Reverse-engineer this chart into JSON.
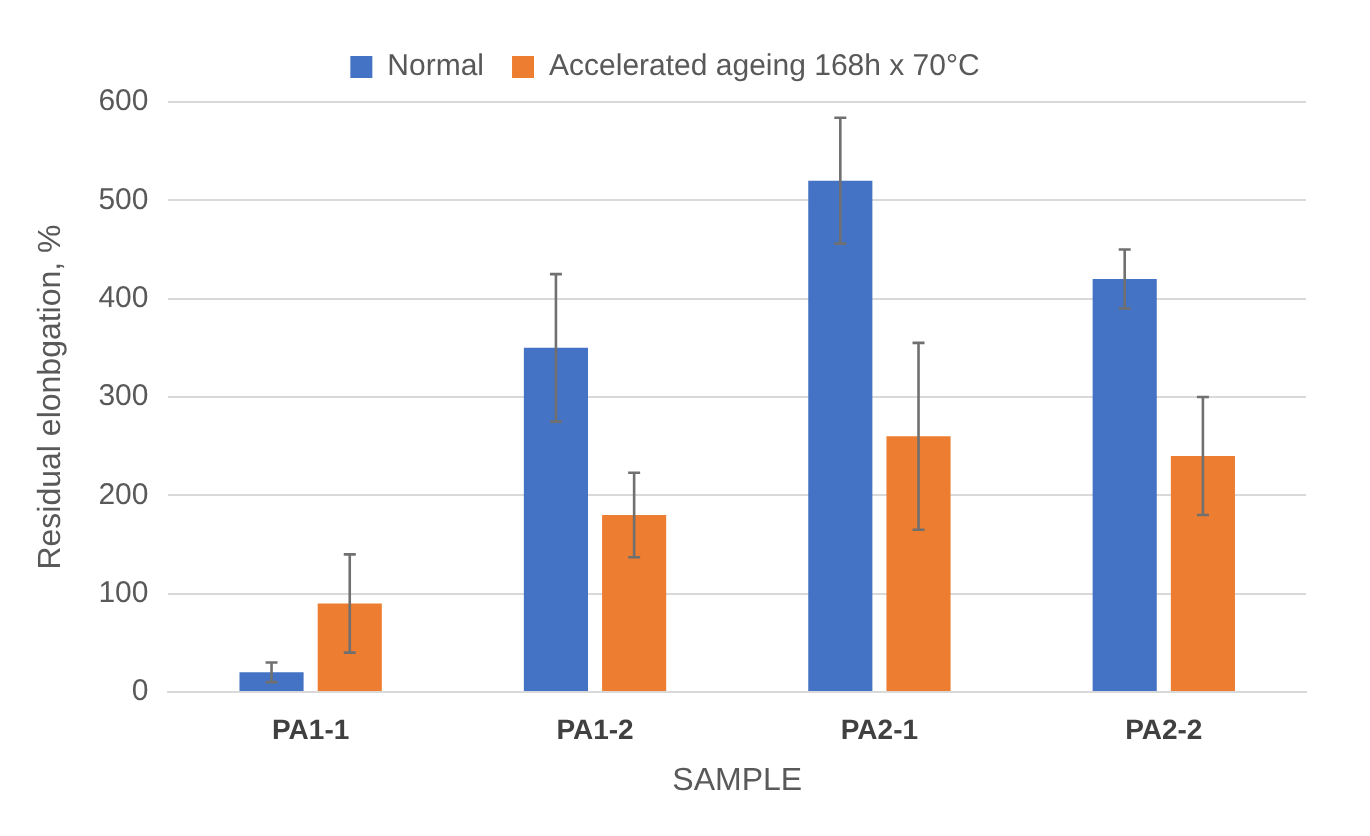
{
  "chart_data": {
    "type": "bar",
    "xlabel": "SAMPLE",
    "ylabel": "Residual elonbgation, %",
    "categories": [
      "PA1-1",
      "PA1-2",
      "PA2-1",
      "PA2-2"
    ],
    "series": [
      {
        "name": "Normal",
        "color": "#4472c4",
        "values": [
          20,
          350,
          520,
          420
        ],
        "errors": [
          10,
          75,
          64,
          30
        ]
      },
      {
        "name": "Accelerated ageing 168h x 70°C",
        "color": "#ed7d31",
        "values": [
          90,
          180,
          260,
          240
        ],
        "errors": [
          50,
          43,
          95,
          60
        ]
      }
    ],
    "ylim": [
      0,
      600
    ],
    "yticks": [
      0,
      100,
      200,
      300,
      400,
      500,
      600
    ],
    "grid": "y",
    "legend": "top"
  }
}
